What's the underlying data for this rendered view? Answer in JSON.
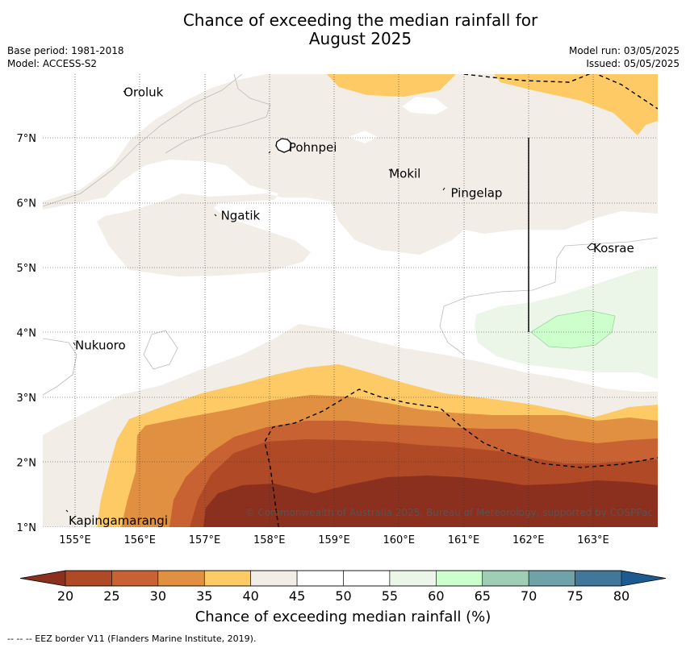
{
  "title_line1": "Chance of exceeding the median rainfall for",
  "title_line2": "August 2025",
  "base_period": "Base period: 1981-2018",
  "model": "Model: ACCESS-S2",
  "model_run": "Model run: 03/05/2025",
  "issued": "Issued: 05/05/2025",
  "copyright": "© Commonwealth of Australia 2025, Bureau of Meteorology, supported by COSPPac",
  "lat_labels": [
    "7°N",
    "6°N",
    "5°N",
    "4°N",
    "3°N",
    "2°N",
    "1°N"
  ],
  "lon_labels": [
    "155°E",
    "156°E",
    "157°E",
    "158°E",
    "159°E",
    "160°E",
    "161°E",
    "162°E",
    "163°E"
  ],
  "places": [
    {
      "name": "Oroluk",
      "lon": 155.75,
      "lat": 7.7
    },
    {
      "name": "Pohnpei",
      "lon": 158.3,
      "lat": 6.85
    },
    {
      "name": "Mokil",
      "lon": 159.85,
      "lat": 6.45
    },
    {
      "name": "Pingelap",
      "lon": 160.8,
      "lat": 6.15
    },
    {
      "name": "Ngatik",
      "lon": 157.25,
      "lat": 5.8
    },
    {
      "name": "Kosrae",
      "lon": 163.0,
      "lat": 5.3
    },
    {
      "name": "Nukuoro",
      "lon": 155.0,
      "lat": 3.8
    },
    {
      "name": "Kapingamarangi",
      "lon": 154.9,
      "lat": 1.1
    }
  ],
  "colorbar": {
    "ticks": [
      "20",
      "25",
      "30",
      "35",
      "40",
      "45",
      "50",
      "55",
      "60",
      "65",
      "70",
      "75",
      "80"
    ],
    "colors": [
      "#b04a26",
      "#c96232",
      "#e09040",
      "#fdca65",
      "#f2ede6",
      "#ffffff",
      "#ffffff",
      "#ebf5e8",
      "#ccffcc",
      "#9ecfb6",
      "#6fa3a8",
      "#40779a"
    ],
    "low_color": "#8b2f1e",
    "high_color": "#1e5a92",
    "label": "Chance of exceeding median rainfall (%)"
  },
  "footnote": "--  --  -- EEZ border V11 (Flanders Marine Institute, 2019)."
}
